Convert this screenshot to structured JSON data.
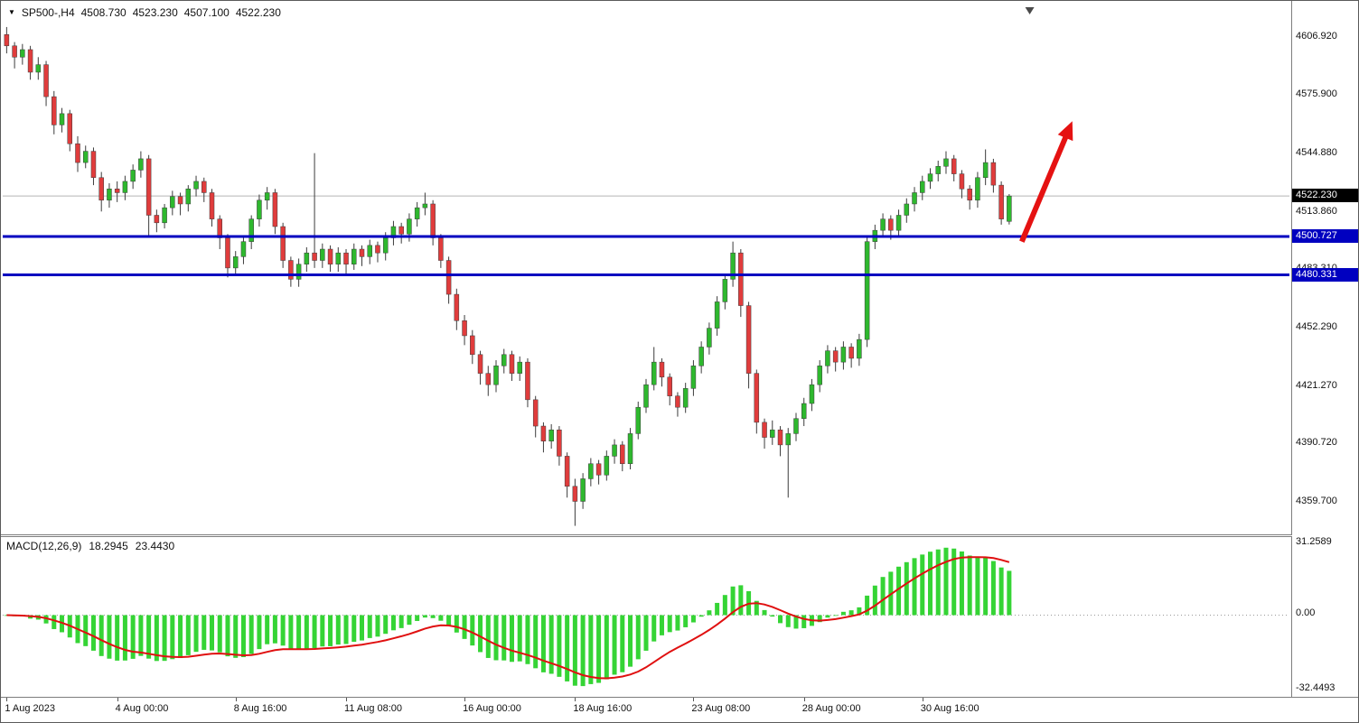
{
  "header": {
    "dropdown_icon": "▼",
    "symbol_label": "SP500-,H4",
    "open": "4508.730",
    "high": "4523.230",
    "low": "4507.100",
    "close": "4522.230"
  },
  "price_axis": {
    "labels": [
      "4606.920",
      "4575.900",
      "4544.880",
      "4513.860",
      "4483.310",
      "4452.290",
      "4421.270",
      "4390.720",
      "4359.700"
    ],
    "current_price": "4522.230",
    "hline_labels": [
      "4500.727",
      "4480.331"
    ]
  },
  "macd_panel": {
    "label": "MACD(12,26,9)",
    "macd_value": "18.2945",
    "signal_value": "23.4430",
    "axis_labels": [
      "31.2589",
      "0.00",
      "-32.4493"
    ]
  },
  "chart_data": {
    "type": "candlestick",
    "title": "SP500-,H4",
    "ylim": [
      4342,
      4623
    ],
    "visible_bars": 163,
    "current_price": 4522.23,
    "hlines": [
      {
        "price": 4500.727,
        "label": "4500.727"
      },
      {
        "price": 4480.331,
        "label": "4480.331"
      }
    ],
    "xticks": [
      {
        "i": 0,
        "label": "1 Aug 2023"
      },
      {
        "i": 14,
        "label": "4 Aug 00:00"
      },
      {
        "i": 29,
        "label": "8 Aug 16:00"
      },
      {
        "i": 43,
        "label": "11 Aug 08:00"
      },
      {
        "i": 58,
        "label": "16 Aug 00:00"
      },
      {
        "i": 72,
        "label": "18 Aug 16:00"
      },
      {
        "i": 87,
        "label": "23 Aug 08:00"
      },
      {
        "i": 101,
        "label": "28 Aug 00:00"
      },
      {
        "i": 116,
        "label": "30 Aug 16:00"
      }
    ],
    "candles": [
      [
        4608,
        4612,
        4598,
        4602
      ],
      [
        4602,
        4604,
        4590,
        4596
      ],
      [
        4596,
        4603,
        4592,
        4600
      ],
      [
        4600,
        4602,
        4584,
        4588
      ],
      [
        4588,
        4596,
        4584,
        4592
      ],
      [
        4592,
        4594,
        4570,
        4575
      ],
      [
        4575,
        4578,
        4555,
        4560
      ],
      [
        4560,
        4569,
        4556,
        4566
      ],
      [
        4566,
        4568,
        4546,
        4550
      ],
      [
        4550,
        4554,
        4535,
        4540
      ],
      [
        4540,
        4549,
        4537,
        4546
      ],
      [
        4546,
        4548,
        4528,
        4532
      ],
      [
        4532,
        4535,
        4514,
        4520
      ],
      [
        4520,
        4529,
        4516,
        4526
      ],
      [
        4526,
        4530,
        4519,
        4524
      ],
      [
        4524,
        4533,
        4520,
        4530
      ],
      [
        4530,
        4539,
        4526,
        4536
      ],
      [
        4536,
        4546,
        4532,
        4542
      ],
      [
        4542,
        4544,
        4501,
        4512
      ],
      [
        4512,
        4515,
        4503,
        4508
      ],
      [
        4508,
        4518,
        4505,
        4516
      ],
      [
        4516,
        4525,
        4512,
        4522
      ],
      [
        4522,
        4524,
        4512,
        4518
      ],
      [
        4518,
        4528,
        4514,
        4526
      ],
      [
        4526,
        4533,
        4522,
        4530
      ],
      [
        4530,
        4532,
        4519,
        4524
      ],
      [
        4524,
        4526,
        4506,
        4510
      ],
      [
        4510,
        4512,
        4494,
        4500
      ],
      [
        4500,
        4502,
        4479,
        4484
      ],
      [
        4484,
        4493,
        4480,
        4490
      ],
      [
        4490,
        4500,
        4486,
        4498
      ],
      [
        4498,
        4512,
        4494,
        4510
      ],
      [
        4510,
        4523,
        4506,
        4520
      ],
      [
        4520,
        4527,
        4515,
        4524
      ],
      [
        4524,
        4526,
        4502,
        4506
      ],
      [
        4506,
        4508,
        4484,
        4488
      ],
      [
        4488,
        4490,
        4474,
        4478
      ],
      [
        4478,
        4489,
        4474,
        4486
      ],
      [
        4486,
        4495,
        4482,
        4492
      ],
      [
        4492,
        4545,
        4484,
        4488
      ],
      [
        4488,
        4497,
        4484,
        4494
      ],
      [
        4494,
        4496,
        4482,
        4486
      ],
      [
        4486,
        4495,
        4482,
        4492
      ],
      [
        4492,
        4494,
        4481,
        4486
      ],
      [
        4486,
        4497,
        4483,
        4494
      ],
      [
        4494,
        4496,
        4485,
        4490
      ],
      [
        4490,
        4499,
        4486,
        4496
      ],
      [
        4496,
        4498,
        4487,
        4492
      ],
      [
        4492,
        4503,
        4488,
        4500
      ],
      [
        4500,
        4509,
        4496,
        4506
      ],
      [
        4506,
        4508,
        4497,
        4502
      ],
      [
        4502,
        4513,
        4498,
        4510
      ],
      [
        4510,
        4519,
        4506,
        4516
      ],
      [
        4516,
        4524,
        4512,
        4518
      ],
      [
        4518,
        4520,
        4496,
        4500
      ],
      [
        4500,
        4502,
        4484,
        4488
      ],
      [
        4488,
        4490,
        4465,
        4470
      ],
      [
        4470,
        4473,
        4451,
        4456
      ],
      [
        4456,
        4459,
        4443,
        4448
      ],
      [
        4448,
        4451,
        4433,
        4438
      ],
      [
        4438,
        4440,
        4422,
        4428
      ],
      [
        4428,
        4432,
        4416,
        4422
      ],
      [
        4422,
        4435,
        4418,
        4432
      ],
      [
        4432,
        4441,
        4428,
        4438
      ],
      [
        4438,
        4440,
        4424,
        4428
      ],
      [
        4428,
        4437,
        4424,
        4434
      ],
      [
        4434,
        4436,
        4410,
        4414
      ],
      [
        4414,
        4416,
        4394,
        4400
      ],
      [
        4400,
        4402,
        4386,
        4392
      ],
      [
        4392,
        4401,
        4388,
        4398
      ],
      [
        4398,
        4400,
        4379,
        4384
      ],
      [
        4384,
        4386,
        4362,
        4368
      ],
      [
        4368,
        4372,
        4347,
        4360
      ],
      [
        4360,
        4375,
        4356,
        4372
      ],
      [
        4372,
        4383,
        4368,
        4380
      ],
      [
        4380,
        4382,
        4369,
        4374
      ],
      [
        4374,
        4387,
        4371,
        4384
      ],
      [
        4384,
        4393,
        4380,
        4390
      ],
      [
        4390,
        4392,
        4376,
        4380
      ],
      [
        4380,
        4399,
        4377,
        4396
      ],
      [
        4396,
        4413,
        4393,
        4410
      ],
      [
        4410,
        4425,
        4407,
        4422
      ],
      [
        4422,
        4442,
        4419,
        4434
      ],
      [
        4434,
        4436,
        4421,
        4426
      ],
      [
        4426,
        4428,
        4411,
        4416
      ],
      [
        4416,
        4418,
        4405,
        4410
      ],
      [
        4410,
        4423,
        4407,
        4420
      ],
      [
        4420,
        4435,
        4416,
        4432
      ],
      [
        4432,
        4445,
        4428,
        4442
      ],
      [
        4442,
        4455,
        4438,
        4452
      ],
      [
        4452,
        4469,
        4448,
        4466
      ],
      [
        4466,
        4481,
        4462,
        4478
      ],
      [
        4478,
        4498,
        4474,
        4492
      ],
      [
        4492,
        4494,
        4458,
        4464
      ],
      [
        4464,
        4466,
        4420,
        4428
      ],
      [
        4428,
        4430,
        4396,
        4402
      ],
      [
        4402,
        4404,
        4388,
        4394
      ],
      [
        4394,
        4403,
        4390,
        4398
      ],
      [
        4398,
        4400,
        4384,
        4390
      ],
      [
        4390,
        4399,
        4362,
        4396
      ],
      [
        4396,
        4407,
        4392,
        4404
      ],
      [
        4404,
        4415,
        4400,
        4412
      ],
      [
        4412,
        4425,
        4408,
        4422
      ],
      [
        4422,
        4435,
        4418,
        4432
      ],
      [
        4432,
        4443,
        4428,
        4440
      ],
      [
        4440,
        4442,
        4429,
        4434
      ],
      [
        4434,
        4445,
        4430,
        4442
      ],
      [
        4442,
        4444,
        4431,
        4436
      ],
      [
        4436,
        4449,
        4432,
        4446
      ],
      [
        4446,
        4501,
        4442,
        4498
      ],
      [
        4498,
        4507,
        4494,
        4504
      ],
      [
        4504,
        4513,
        4500,
        4510
      ],
      [
        4510,
        4512,
        4499,
        4504
      ],
      [
        4504,
        4515,
        4500,
        4512
      ],
      [
        4512,
        4521,
        4508,
        4518
      ],
      [
        4518,
        4527,
        4514,
        4524
      ],
      [
        4524,
        4533,
        4520,
        4530
      ],
      [
        4530,
        4537,
        4526,
        4534
      ],
      [
        4534,
        4541,
        4530,
        4538
      ],
      [
        4538,
        4546,
        4534,
        4542
      ],
      [
        4542,
        4544,
        4530,
        4534
      ],
      [
        4534,
        4536,
        4521,
        4526
      ],
      [
        4526,
        4528,
        4515,
        4520
      ],
      [
        4520,
        4535,
        4516,
        4532
      ],
      [
        4532,
        4547,
        4528,
        4540
      ],
      [
        4540,
        4542,
        4524,
        4528
      ],
      [
        4528,
        4530,
        4507,
        4510
      ],
      [
        4508.73,
        4523.23,
        4507.1,
        4522.23
      ]
    ],
    "macd": {
      "fast": 12,
      "slow": 26,
      "signal": 9,
      "current_macd": 18.2945,
      "current_signal": 23.443,
      "axis": [
        31.2589,
        0.0,
        -32.4493
      ]
    },
    "annotations": [
      {
        "type": "arrow",
        "from_i": 128.6,
        "from_price": 4498,
        "to_i": 135,
        "to_price": 4562,
        "color": "#e51212"
      }
    ],
    "shift_marker_i": 129.6,
    "colors": {
      "candle_up": "#2eb82e",
      "candle_down": "#e03c3c",
      "wick": "#3c3c3c",
      "macd_bar": "#35d435",
      "macd_signal": "#e01010",
      "hline": "#0000c0",
      "current_price_line": "#b4b4b4",
      "background": "#ffffff"
    }
  }
}
